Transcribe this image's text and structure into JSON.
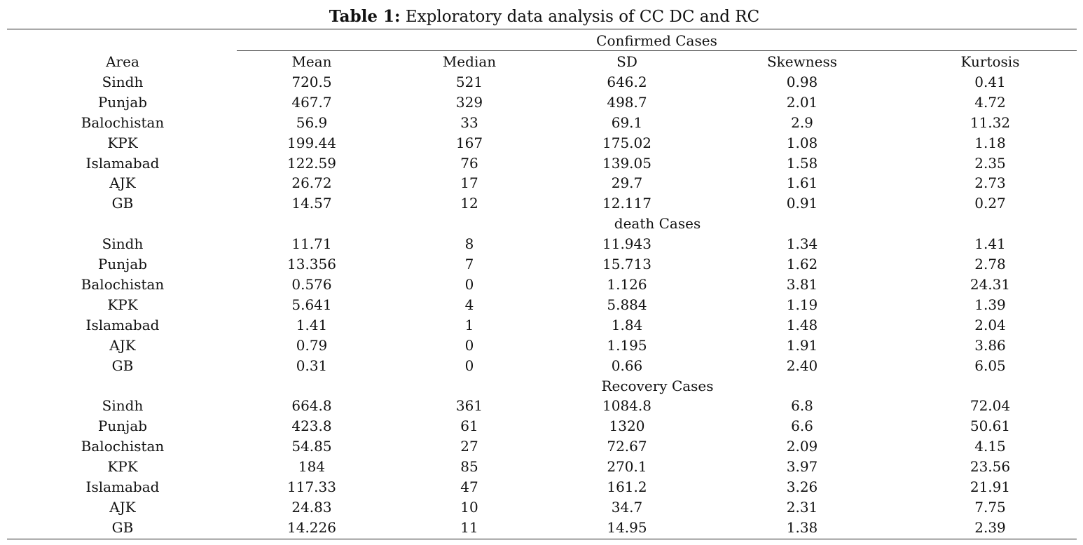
{
  "caption": {
    "label": "Table 1:",
    "text": " Exploratory data analysis of CC DC and RC"
  },
  "header": {
    "group_title": "Confirmed Cases",
    "columns": [
      "Area",
      "Mean",
      "Median",
      "SD",
      "Skewness",
      "Kurtosis"
    ]
  },
  "sections": [
    {
      "title": "Confirmed Cases",
      "rows": [
        [
          "Sindh",
          "720.5",
          "521",
          "646.2",
          "0.98",
          "0.41"
        ],
        [
          "Punjab",
          "467.7",
          "329",
          "498.7",
          "2.01",
          "4.72"
        ],
        [
          "Balochistan",
          "56.9",
          "33",
          "69.1",
          "2.9",
          "11.32"
        ],
        [
          "KPK",
          "199.44",
          "167",
          "175.02",
          "1.08",
          "1.18"
        ],
        [
          "Islamabad",
          "122.59",
          "76",
          "139.05",
          "1.58",
          "2.35"
        ],
        [
          "AJK",
          "26.72",
          "17",
          "29.7",
          "1.61",
          "2.73"
        ],
        [
          "GB",
          "14.57",
          "12",
          "12.117",
          "0.91",
          "0.27"
        ]
      ]
    },
    {
      "title": "death Cases",
      "rows": [
        [
          "Sindh",
          "11.71",
          "8",
          "11.943",
          "1.34",
          "1.41"
        ],
        [
          "Punjab",
          "13.356",
          "7",
          "15.713",
          "1.62",
          "2.78"
        ],
        [
          "Balochistan",
          "0.576",
          "0",
          "1.126",
          "3.81",
          "24.31"
        ],
        [
          "KPK",
          "5.641",
          "4",
          "5.884",
          "1.19",
          "1.39"
        ],
        [
          "Islamabad",
          "1.41",
          "1",
          "1.84",
          "1.48",
          "2.04"
        ],
        [
          "AJK",
          "0.79",
          "0",
          "1.195",
          "1.91",
          "3.86"
        ],
        [
          "GB",
          "0.31",
          "0",
          "0.66",
          "2.40",
          "6.05"
        ]
      ]
    },
    {
      "title": "Recovery Cases",
      "rows": [
        [
          "Sindh",
          "664.8",
          "361",
          "1084.8",
          "6.8",
          "72.04"
        ],
        [
          "Punjab",
          "423.8",
          "61",
          "1320",
          "6.6",
          "50.61"
        ],
        [
          "Balochistan",
          "54.85",
          "27",
          "72.67",
          "2.09",
          "4.15"
        ],
        [
          "KPK",
          "184",
          "85",
          "270.1",
          "3.97",
          "23.56"
        ],
        [
          "Islamabad",
          "117.33",
          "47",
          "161.2",
          "3.26",
          "21.91"
        ],
        [
          "AJK",
          "24.83",
          "10",
          "34.7",
          "2.31",
          "7.75"
        ],
        [
          "GB",
          "14.226",
          "11",
          "14.95",
          "1.38",
          "2.39"
        ]
      ]
    }
  ]
}
